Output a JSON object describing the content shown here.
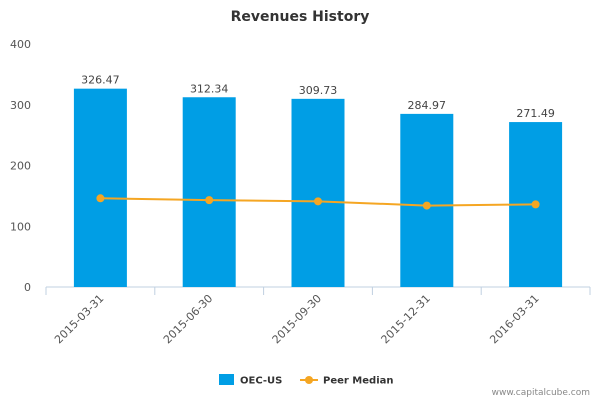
{
  "chart_data": {
    "type": "bar",
    "title": "Revenues History",
    "categories": [
      "2015-03-31",
      "2015-06-30",
      "2015-09-30",
      "2015-12-31",
      "2016-03-31"
    ],
    "series": [
      {
        "name": "OEC-US",
        "type": "bar",
        "color": "#009ee5",
        "values": [
          326.47,
          312.34,
          309.73,
          284.97,
          271.49
        ],
        "labels": [
          "326.47",
          "312.34",
          "309.73",
          "284.97",
          "271.49"
        ]
      },
      {
        "name": "Peer Median",
        "type": "line",
        "color": "#f5a623",
        "values": [
          146,
          143,
          141,
          134,
          136
        ]
      }
    ],
    "ylim": [
      0,
      400
    ],
    "yticks": [
      "0",
      "100",
      "200",
      "300",
      "400"
    ],
    "xlabel": "",
    "ylabel": "",
    "grid": false,
    "legend_position": "bottom"
  },
  "watermark": "www.capitalcube.com"
}
